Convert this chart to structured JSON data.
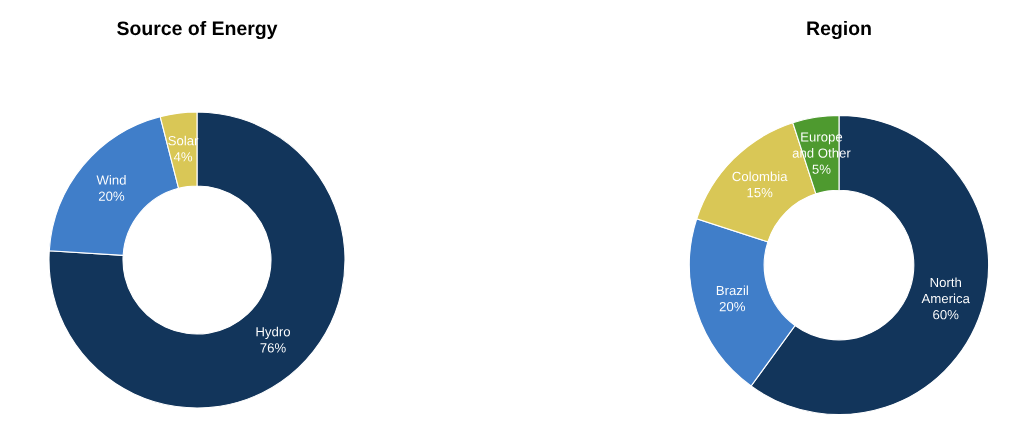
{
  "chart_data": [
    {
      "type": "donut",
      "title": "Source of Energy",
      "categories": [
        "Hydro",
        "Wind",
        "Solar"
      ],
      "values": [
        76,
        20,
        4
      ],
      "value_labels": [
        "76%",
        "20%",
        "4%"
      ],
      "colors": [
        "#12355b",
        "#407ec9",
        "#d9c756"
      ],
      "legend": false
    },
    {
      "type": "donut",
      "title": "Region",
      "categories": [
        "North\nAmerica",
        "Brazil",
        "Colombia",
        "Europe\nand Other"
      ],
      "values": [
        60,
        20,
        15,
        5
      ],
      "value_labels": [
        "60%",
        "20%",
        "15%",
        "5%"
      ],
      "colors": [
        "#12355b",
        "#407ec9",
        "#d9c756",
        "#4e9a2f"
      ],
      "legend": false
    }
  ]
}
